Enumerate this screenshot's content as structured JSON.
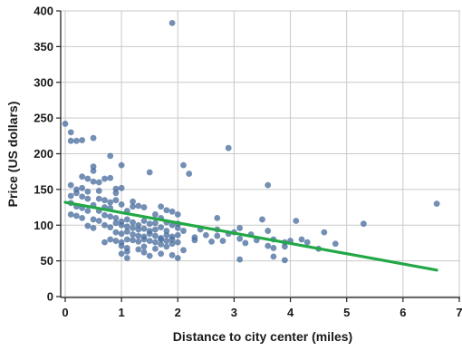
{
  "chart_data": {
    "type": "scatter",
    "title": "",
    "xlabel": "Distance to city center (miles)",
    "ylabel": "Price (US dollars)",
    "xlim": [
      0,
      7
    ],
    "ylim": [
      0,
      400
    ],
    "xticks": [
      "0",
      "1",
      "2",
      "3",
      "4",
      "5",
      "6",
      "7"
    ],
    "yticks": [
      "0",
      "50",
      "100",
      "150",
      "200",
      "250",
      "300",
      "350",
      "400"
    ],
    "grid": true,
    "point_color": "#4c6f9f",
    "trend_color": "#22a846",
    "trend_line": {
      "x": [
        0,
        6.6
      ],
      "y": [
        132,
        37
      ]
    },
    "points": [
      [
        1.9,
        383
      ],
      [
        0.0,
        242
      ],
      [
        0.1,
        230
      ],
      [
        0.1,
        218
      ],
      [
        0.2,
        218
      ],
      [
        0.3,
        219
      ],
      [
        0.5,
        222
      ],
      [
        2.9,
        208
      ],
      [
        0.8,
        197
      ],
      [
        2.1,
        184
      ],
      [
        1.0,
        184
      ],
      [
        0.5,
        182
      ],
      [
        0.5,
        176
      ],
      [
        1.5,
        174
      ],
      [
        2.2,
        172
      ],
      [
        0.3,
        168
      ],
      [
        0.4,
        165
      ],
      [
        0.5,
        161
      ],
      [
        0.6,
        160
      ],
      [
        0.7,
        165
      ],
      [
        0.8,
        166
      ],
      [
        3.6,
        156
      ],
      [
        0.1,
        156
      ],
      [
        0.2,
        150
      ],
      [
        0.3,
        152
      ],
      [
        0.4,
        147
      ],
      [
        0.6,
        148
      ],
      [
        0.9,
        151
      ],
      [
        1.0,
        152
      ],
      [
        0.9,
        145
      ],
      [
        0.2,
        145
      ],
      [
        0.3,
        140
      ],
      [
        0.4,
        137
      ],
      [
        0.1,
        141
      ],
      [
        0.6,
        137
      ],
      [
        0.7,
        135
      ],
      [
        0.8,
        132
      ],
      [
        0.9,
        135
      ],
      [
        1.0,
        129
      ],
      [
        1.2,
        133
      ],
      [
        1.3,
        127
      ],
      [
        1.4,
        125
      ],
      [
        0.1,
        131
      ],
      [
        0.2,
        126
      ],
      [
        0.3,
        124
      ],
      [
        0.4,
        120
      ],
      [
        0.5,
        128
      ],
      [
        0.6,
        120
      ],
      [
        0.7,
        125
      ],
      [
        0.8,
        124
      ],
      [
        1.1,
        120
      ],
      [
        1.2,
        126
      ],
      [
        1.7,
        126
      ],
      [
        1.8,
        121
      ],
      [
        1.9,
        119
      ],
      [
        2.0,
        115
      ],
      [
        1.6,
        115
      ],
      [
        1.7,
        110
      ],
      [
        0.1,
        115
      ],
      [
        0.2,
        113
      ],
      [
        0.3,
        110
      ],
      [
        0.5,
        108
      ],
      [
        0.6,
        106
      ],
      [
        0.7,
        114
      ],
      [
        0.8,
        112
      ],
      [
        0.9,
        110
      ],
      [
        1.0,
        105
      ],
      [
        1.1,
        108
      ],
      [
        1.2,
        104
      ],
      [
        1.3,
        100
      ],
      [
        1.4,
        106
      ],
      [
        1.5,
        102
      ],
      [
        1.6,
        103
      ],
      [
        1.8,
        104
      ],
      [
        1.9,
        100
      ],
      [
        2.0,
        102
      ],
      [
        2.7,
        110
      ],
      [
        3.5,
        108
      ],
      [
        4.1,
        106
      ],
      [
        0.4,
        99
      ],
      [
        0.5,
        96
      ],
      [
        0.7,
        100
      ],
      [
        0.8,
        97
      ],
      [
        0.9,
        103
      ],
      [
        1.0,
        100
      ],
      [
        1.1,
        98
      ],
      [
        1.2,
        96
      ],
      [
        1.3,
        94
      ],
      [
        1.4,
        95
      ],
      [
        1.5,
        92
      ],
      [
        1.6,
        94
      ],
      [
        1.7,
        97
      ],
      [
        1.8,
        92
      ],
      [
        2.0,
        96
      ],
      [
        2.1,
        92
      ],
      [
        2.4,
        94
      ],
      [
        2.7,
        94
      ],
      [
        3.1,
        96
      ],
      [
        3.6,
        92
      ],
      [
        3.0,
        90
      ],
      [
        4.6,
        90
      ],
      [
        5.3,
        102
      ],
      [
        6.6,
        130
      ],
      [
        0.9,
        90
      ],
      [
        1.0,
        88
      ],
      [
        1.1,
        91
      ],
      [
        1.2,
        87
      ],
      [
        1.3,
        85
      ],
      [
        1.4,
        84
      ],
      [
        1.5,
        88
      ],
      [
        1.6,
        85
      ],
      [
        1.7,
        82
      ],
      [
        1.8,
        86
      ],
      [
        1.9,
        84
      ],
      [
        2.0,
        86
      ],
      [
        2.3,
        83
      ],
      [
        2.5,
        86
      ],
      [
        2.7,
        85
      ],
      [
        2.9,
        88
      ],
      [
        3.3,
        87
      ],
      [
        0.8,
        80
      ],
      [
        0.9,
        78
      ],
      [
        1.0,
        76
      ],
      [
        1.1,
        80
      ],
      [
        1.2,
        79
      ],
      [
        1.3,
        77
      ],
      [
        1.4,
        80
      ],
      [
        1.5,
        78
      ],
      [
        1.6,
        76
      ],
      [
        1.7,
        80
      ],
      [
        1.8,
        78
      ],
      [
        1.9,
        80
      ],
      [
        2.0,
        76
      ],
      [
        2.3,
        79
      ],
      [
        2.6,
        77
      ],
      [
        2.8,
        78
      ],
      [
        3.1,
        81
      ],
      [
        3.4,
        79
      ],
      [
        3.7,
        80
      ],
      [
        3.9,
        76
      ],
      [
        4.0,
        78
      ],
      [
        4.2,
        80
      ],
      [
        4.3,
        76
      ],
      [
        4.8,
        74
      ],
      [
        0.7,
        76
      ],
      [
        1.7,
        73
      ],
      [
        1.9,
        74
      ],
      [
        3.2,
        75
      ],
      [
        1.0,
        71
      ],
      [
        1.1,
        68
      ],
      [
        1.3,
        66
      ],
      [
        1.4,
        70
      ],
      [
        1.6,
        67
      ],
      [
        1.8,
        70
      ],
      [
        2.1,
        65
      ],
      [
        3.6,
        71
      ],
      [
        3.7,
        68
      ],
      [
        3.9,
        70
      ],
      [
        4.5,
        67
      ],
      [
        1.0,
        60
      ],
      [
        1.1,
        63
      ],
      [
        1.4,
        62
      ],
      [
        1.5,
        57
      ],
      [
        1.7,
        60
      ],
      [
        1.9,
        58
      ],
      [
        1.1,
        54
      ],
      [
        2.0,
        54
      ],
      [
        3.1,
        52
      ],
      [
        3.9,
        51
      ],
      [
        3.7,
        56
      ]
    ]
  }
}
